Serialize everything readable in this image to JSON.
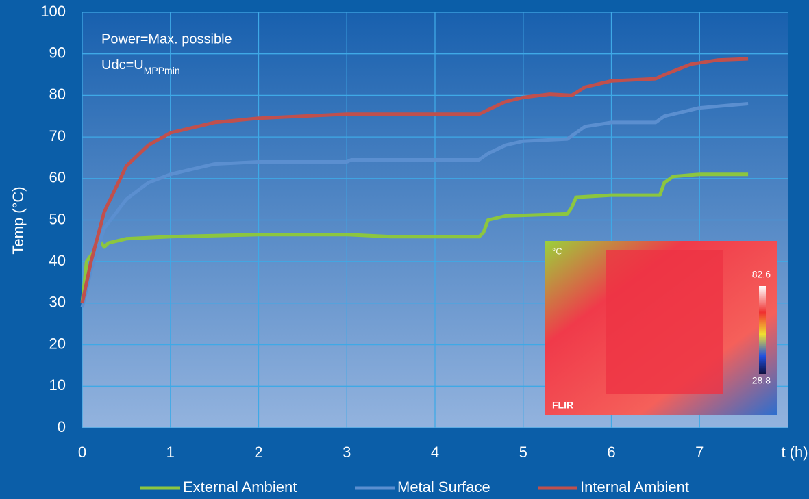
{
  "chart_data": {
    "type": "line",
    "ylabel": "Temp (°C)",
    "xlabel": "t (h)",
    "xlim": [
      0,
      8
    ],
    "xticks": [
      0,
      1,
      2,
      3,
      4,
      5,
      6,
      7
    ],
    "ylim": [
      0,
      100
    ],
    "yticks": [
      0,
      10,
      20,
      30,
      40,
      50,
      60,
      70,
      80,
      90,
      100
    ],
    "grid": true,
    "annotations": [
      {
        "text": "Power=Max. possible"
      },
      {
        "text": "Udc=U",
        "subscript": "MPPmin"
      }
    ],
    "series": [
      {
        "name": "External Ambient",
        "color": "#8cc63f",
        "x": [
          0,
          0.05,
          0.15,
          0.2,
          0.25,
          0.3,
          0.5,
          1,
          2,
          3,
          3.5,
          4,
          4.5,
          4.55,
          4.6,
          4.8,
          5.5,
          5.55,
          5.6,
          6,
          6.55,
          6.6,
          6.7,
          7,
          7.55
        ],
        "values": [
          30,
          40,
          43,
          45,
          43.5,
          44.5,
          45.5,
          46,
          46.5,
          46.5,
          46,
          46,
          46,
          47,
          50,
          51,
          51.5,
          53,
          55.5,
          56,
          56,
          59,
          60.5,
          61,
          61
        ]
      },
      {
        "name": "Metal Surface",
        "color": "#5b8fd0",
        "x": [
          0,
          0.1,
          0.25,
          0.5,
          0.75,
          1,
          1.5,
          2,
          3,
          3.05,
          4,
          4.5,
          4.6,
          4.8,
          5,
          5.5,
          5.6,
          5.7,
          6,
          6.5,
          6.6,
          7,
          7.55
        ],
        "values": [
          29,
          38,
          48,
          55,
          59,
          61,
          63.5,
          64,
          64,
          64.5,
          64.5,
          64.5,
          66,
          68,
          69,
          69.5,
          71,
          72.5,
          73.5,
          73.5,
          75,
          77,
          78
        ]
      },
      {
        "name": "Internal Ambient",
        "color": "#c0504d",
        "x": [
          0,
          0.1,
          0.25,
          0.5,
          0.75,
          1,
          1.5,
          2,
          3,
          4,
          4.5,
          4.6,
          4.8,
          5,
          5.3,
          5.55,
          5.7,
          6,
          6.5,
          6.6,
          6.9,
          7.2,
          7.55
        ],
        "values": [
          30,
          40,
          52,
          63,
          68,
          71,
          73.5,
          74.5,
          75.5,
          75.5,
          75.5,
          76.5,
          78.5,
          79.5,
          80.3,
          80,
          82,
          83.5,
          84,
          85,
          87.5,
          88.5,
          88.8
        ]
      }
    ],
    "inset": {
      "unit": "°C",
      "max": 82.6,
      "min": 28.8,
      "brand": "FLIR"
    }
  }
}
